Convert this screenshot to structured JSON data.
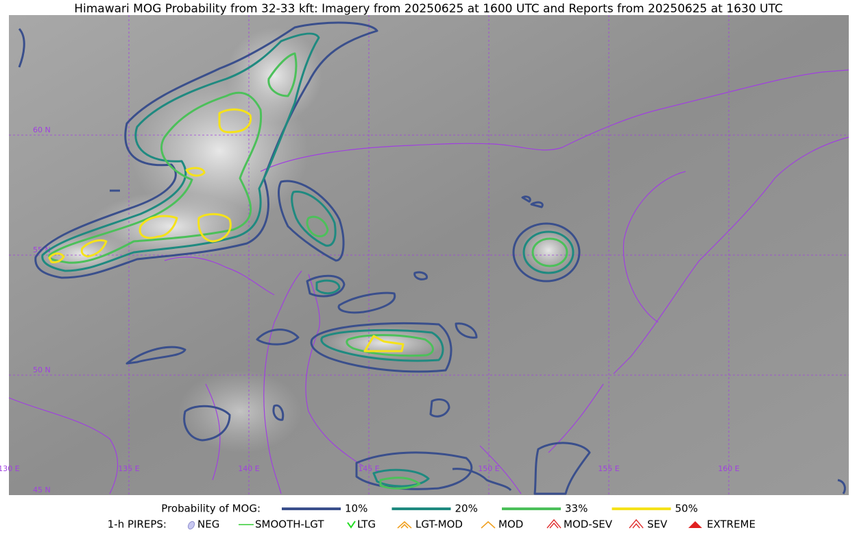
{
  "header": {
    "title": "Himawari MOG Probability from 32-33 kft: Imagery from 20250625 at 1600 UTC and Reports from 20250625 at 1630 UTC"
  },
  "map": {
    "lat_labels": [
      "60 N",
      "55 N",
      "50 N",
      "45 N"
    ],
    "lon_labels": [
      "130 E",
      "135 E",
      "140 E",
      "145 E",
      "150 E",
      "155 E",
      "160 E"
    ]
  },
  "legend": {
    "probability": {
      "title": "Probability of MOG:",
      "items": [
        {
          "label": "10%",
          "color": "#3a4f8c"
        },
        {
          "label": "20%",
          "color": "#1f8a80"
        },
        {
          "label": "33%",
          "color": "#4cc05a"
        },
        {
          "label": "50%",
          "color": "#f5e21a"
        }
      ]
    },
    "pireps": {
      "title": "1-h PIREPS:",
      "items": [
        "NEG",
        "SMOOTH-LGT",
        "LTG",
        "LGT-MOD",
        "MOD",
        "MOD-SEV",
        "SEV",
        "EXTREME"
      ]
    }
  }
}
